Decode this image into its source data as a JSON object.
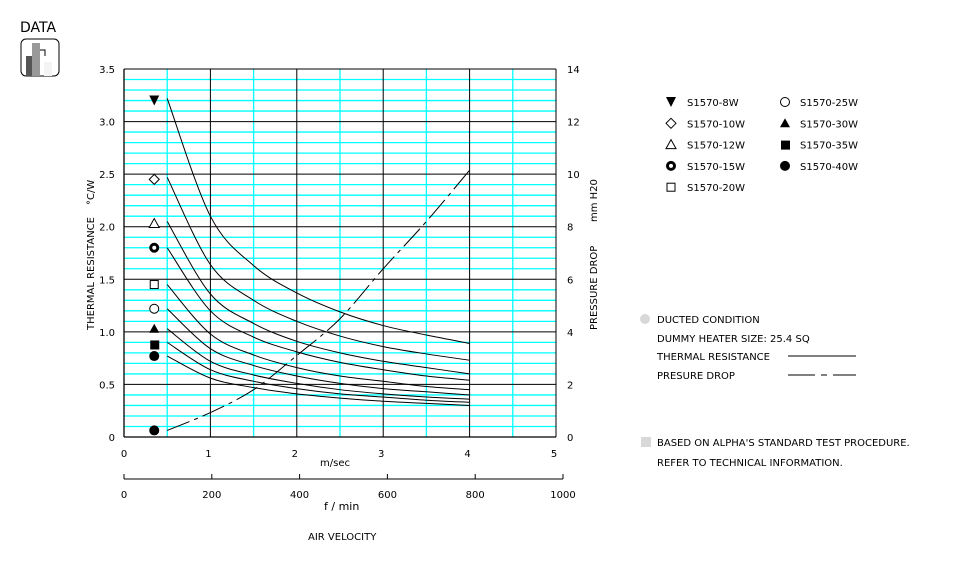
{
  "header": {
    "label": "DATA",
    "icon": "bar-chart-icon"
  },
  "chart_data": {
    "type": "line",
    "xlabel_unit": "m/sec",
    "xlabel_secondary_unit": "f / min",
    "xlabel": "AIR VELOCITY",
    "ylabel": "THERMAL RESISTANCE",
    "ylabel_unit": "°C/W",
    "y2label": "PRESSURE DROP",
    "y2label_unit": "mm H20",
    "xlim": [
      0,
      5
    ],
    "ylim": [
      0,
      3.5
    ],
    "y2lim": [
      0,
      14
    ],
    "x2lim": [
      0,
      1000
    ],
    "xticks": [
      "0",
      "1",
      "2",
      "3",
      "4",
      "5"
    ],
    "x2ticks": [
      "0",
      "200",
      "400",
      "600",
      "800",
      "1000"
    ],
    "yticks": [
      "0",
      "0.5",
      "1.0",
      "1.5",
      "2.0",
      "2.5",
      "3.0",
      "3.5"
    ],
    "y2ticks": [
      "0",
      "2",
      "4",
      "6",
      "8",
      "10",
      "12",
      "14"
    ],
    "grid": true,
    "x": [
      0.5,
      1,
      1.5,
      2,
      2.5,
      3,
      3.5,
      4
    ],
    "series": [
      {
        "name": "S1570-8W",
        "marker": "triangle-down-filled",
        "marker_value": 3.2,
        "values": [
          3.22,
          2.1,
          1.63,
          1.37,
          1.19,
          1.06,
          0.97,
          0.89
        ]
      },
      {
        "name": "S1570-10W",
        "marker": "diamond-open",
        "marker_value": 2.45,
        "values": [
          2.47,
          1.64,
          1.3,
          1.1,
          0.96,
          0.86,
          0.79,
          0.73
        ]
      },
      {
        "name": "S1570-12W",
        "marker": "triangle-up-open",
        "marker_value": 2.03,
        "values": [
          2.05,
          1.36,
          1.08,
          0.91,
          0.8,
          0.72,
          0.66,
          0.6
        ]
      },
      {
        "name": "S1570-15W",
        "marker": "circle-bold",
        "marker_value": 1.8,
        "values": [
          1.8,
          1.2,
          0.95,
          0.81,
          0.71,
          0.64,
          0.58,
          0.54
        ]
      },
      {
        "name": "S1570-20W",
        "marker": "square-open",
        "marker_value": 1.45,
        "values": [
          1.45,
          0.98,
          0.78,
          0.66,
          0.58,
          0.53,
          0.48,
          0.45
        ]
      },
      {
        "name": "S1570-25W",
        "marker": "circle-open",
        "marker_value": 1.22,
        "values": [
          1.22,
          0.84,
          0.68,
          0.58,
          0.51,
          0.46,
          0.43,
          0.4
        ]
      },
      {
        "name": "S1570-30W",
        "marker": "triangle-up-filled",
        "marker_value": 1.03,
        "values": [
          1.03,
          0.72,
          0.59,
          0.51,
          0.45,
          0.41,
          0.38,
          0.36
        ]
      },
      {
        "name": "S1570-35W",
        "marker": "square-filled",
        "marker_value": 0.88,
        "values": [
          0.9,
          0.64,
          0.53,
          0.46,
          0.41,
          0.38,
          0.35,
          0.33
        ]
      },
      {
        "name": "S1570-40W",
        "marker": "circle-filled",
        "marker_value": 0.77,
        "values": [
          0.77,
          0.56,
          0.47,
          0.41,
          0.37,
          0.34,
          0.32,
          0.3
        ]
      }
    ],
    "marker_x": 0.35,
    "pressure_drop": {
      "name": "PRESURE DROP",
      "marker": "circle-filled",
      "marker_value": 0.25,
      "values": [
        0.25,
        0.93,
        1.8,
        3.1,
        4.5,
        6.4,
        8.2,
        10.15
      ]
    },
    "colors": {
      "grid_major": "#000000",
      "grid_minor": "#00ffff",
      "line": "#000000"
    }
  },
  "notes": {
    "ducted": "DUCTED CONDITION",
    "heater": "DUMMY HEATER SIZE: 25.4 SQ",
    "thermal_label": "THERMAL RESISTANCE",
    "pressure_label": "PRESURE DROP",
    "based": "BASED ON ALPHA'S STANDARD TEST PROCEDURE.",
    "refer": "REFER TO TECHNICAL INFORMATION."
  }
}
